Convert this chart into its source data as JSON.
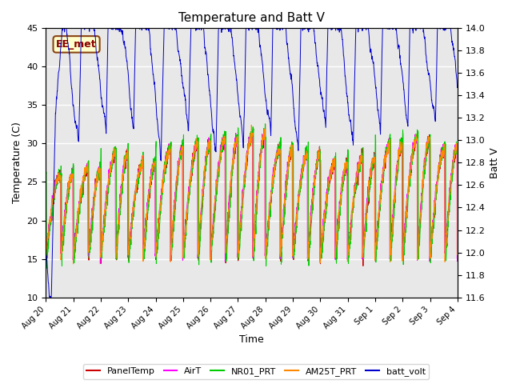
{
  "title": "Temperature and Batt V",
  "xlabel": "Time",
  "ylabel_left": "Temperature (C)",
  "ylabel_right": "Batt V",
  "annotation": "EE_met",
  "ylim_left": [
    10,
    45
  ],
  "ylim_right": [
    11.6,
    14.0
  ],
  "background_color": "#e8e8e8",
  "panel_color": "#cc0000",
  "air_color": "#ff00ff",
  "nr01_color": "#00cc00",
  "am25t_color": "#ff8800",
  "batt_color": "#0000cc",
  "legend_entries": [
    "PanelTemp",
    "AirT",
    "NR01_PRT",
    "AM25T_PRT",
    "batt_volt"
  ]
}
